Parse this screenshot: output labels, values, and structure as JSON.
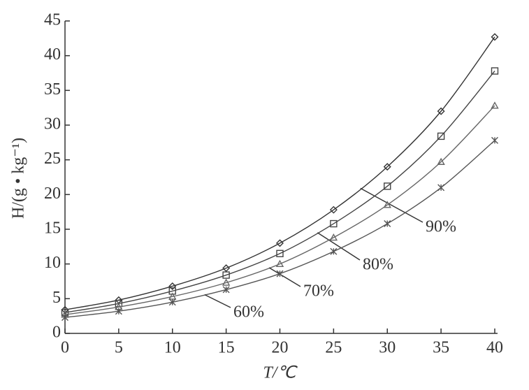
{
  "chart_data": {
    "type": "line",
    "x_label": "T/℃",
    "y_label": "H/(g • kg⁻¹)",
    "x": [
      0,
      5,
      10,
      15,
      20,
      25,
      30,
      35,
      40
    ],
    "series": [
      {
        "name": "90%",
        "color": "#333333",
        "marker": "diamond",
        "values": [
          3.4,
          4.8,
          6.8,
          9.4,
          13.0,
          17.8,
          24.0,
          32.0,
          42.7
        ]
      },
      {
        "name": "80%",
        "color": "#444444",
        "marker": "square",
        "values": [
          3.0,
          4.3,
          6.1,
          8.4,
          11.5,
          15.8,
          21.2,
          28.4,
          37.8
        ]
      },
      {
        "name": "70%",
        "color": "#666666",
        "marker": "triangle",
        "values": [
          2.7,
          3.8,
          5.3,
          7.3,
          10.0,
          13.8,
          18.5,
          24.7,
          32.8
        ]
      },
      {
        "name": "60%",
        "color": "#555555",
        "marker": "star",
        "values": [
          2.3,
          3.2,
          4.5,
          6.3,
          8.6,
          11.8,
          15.8,
          21.0,
          27.8
        ]
      }
    ],
    "xlim": [
      0,
      40
    ],
    "xticks": [
      0,
      5,
      10,
      15,
      20,
      25,
      30,
      35,
      40
    ],
    "ylim": [
      0,
      45
    ],
    "yticks": [
      0,
      5,
      10,
      15,
      20,
      25,
      30,
      35,
      40,
      45
    ],
    "grid": false
  }
}
